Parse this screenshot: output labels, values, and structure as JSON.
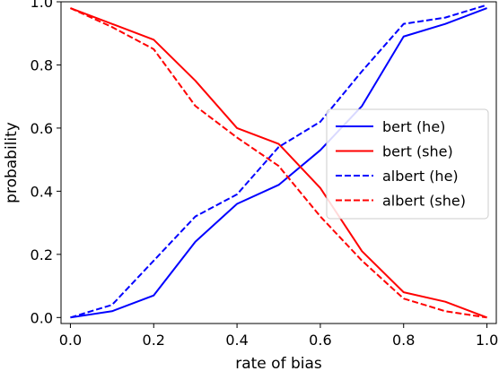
{
  "chart_data": {
    "type": "line",
    "title": "",
    "xlabel": "rate of bias",
    "ylabel": "probability",
    "xlim": [
      -0.0225,
      1.0225
    ],
    "ylim": [
      -0.019,
      1.0
    ],
    "x_ticks": [
      "0.0",
      "0.2",
      "0.4",
      "0.6",
      "0.8",
      "1.0"
    ],
    "y_ticks": [
      "0.0",
      "0.2",
      "0.4",
      "0.6",
      "0.8",
      "1.0"
    ],
    "x": [
      0.0,
      0.1,
      0.2,
      0.3,
      0.4,
      0.5,
      0.6,
      0.7,
      0.8,
      0.9,
      1.0
    ],
    "grid": false,
    "legend_position": "center-right",
    "series": [
      {
        "name": "bert (he)",
        "color": "#0000ff",
        "style": "solid",
        "values": [
          0.0,
          0.02,
          0.07,
          0.24,
          0.36,
          0.42,
          0.53,
          0.67,
          0.89,
          0.93,
          0.98
        ]
      },
      {
        "name": "bert (she)",
        "color": "#ff0000",
        "style": "solid",
        "values": [
          0.98,
          0.93,
          0.88,
          0.75,
          0.6,
          0.55,
          0.41,
          0.21,
          0.08,
          0.05,
          0.0
        ]
      },
      {
        "name": "albert (he)",
        "color": "#0000ff",
        "style": "dashed",
        "values": [
          0.0,
          0.04,
          0.18,
          0.32,
          0.39,
          0.54,
          0.62,
          0.78,
          0.93,
          0.95,
          0.99
        ]
      },
      {
        "name": "albert (she)",
        "color": "#ff0000",
        "style": "dashed",
        "values": [
          0.98,
          0.92,
          0.85,
          0.67,
          0.57,
          0.48,
          0.32,
          0.18,
          0.06,
          0.02,
          0.0
        ]
      }
    ]
  }
}
